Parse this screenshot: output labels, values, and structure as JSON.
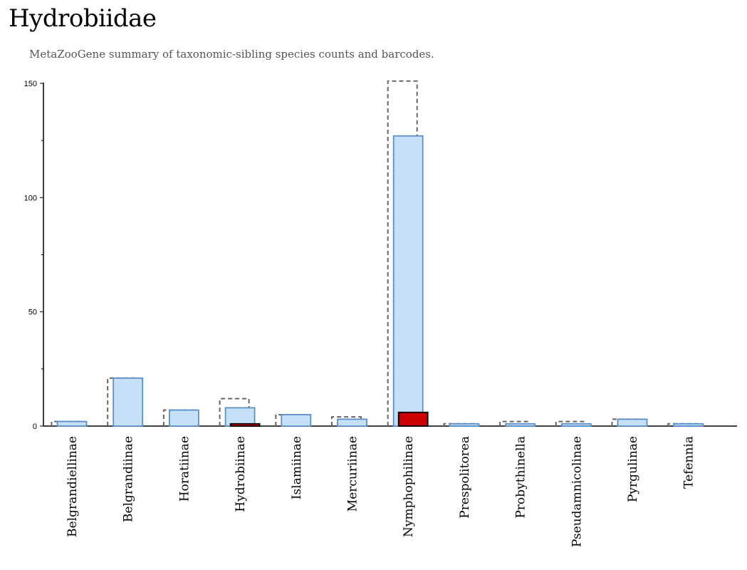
{
  "header": {
    "title": "Hydrobiidae",
    "subtitle": "MetaZooGene summary of taxonomic-sibling species counts and barcodes."
  },
  "chart_data": {
    "type": "bar",
    "title": "Hydrobiidae",
    "subtitle": "MetaZooGene summary of taxonomic-sibling species counts and barcodes.",
    "xlabel": "",
    "ylabel": "",
    "ylim": [
      0,
      152
    ],
    "yticks": [
      0,
      50,
      100,
      150
    ],
    "categories": [
      "Belgrandiellinae",
      "Belgrandiinae",
      "Horatiinae",
      "Hydrobiinae",
      "Islamiinae",
      "Mercuriinae",
      "Nymphophilinae",
      "Prespolitorea",
      "Probythinella",
      "Pseudamnicolinae",
      "Pyrgulinae",
      "Tefennia"
    ],
    "series": [
      {
        "name": "",
        "style": "dashed-outline",
        "values": [
          2,
          21,
          7,
          12,
          5,
          4,
          151,
          1,
          2,
          2,
          3,
          1
        ]
      },
      {
        "name": "",
        "style": "light-blue-fill",
        "values": [
          2,
          21,
          7,
          8,
          5,
          3,
          127,
          1,
          1,
          1,
          3,
          1
        ]
      },
      {
        "name": "",
        "style": "red-fill",
        "values": [
          0,
          0,
          0,
          1,
          0,
          0,
          6,
          0,
          0,
          0,
          0,
          0
        ]
      }
    ],
    "colors": {
      "total_outline": "#666666",
      "species_fill": "#c6e0f8",
      "species_stroke": "#5b8fc9",
      "barcode_fill": "#cc0000",
      "barcode_stroke": "#000000"
    },
    "grid": false
  }
}
